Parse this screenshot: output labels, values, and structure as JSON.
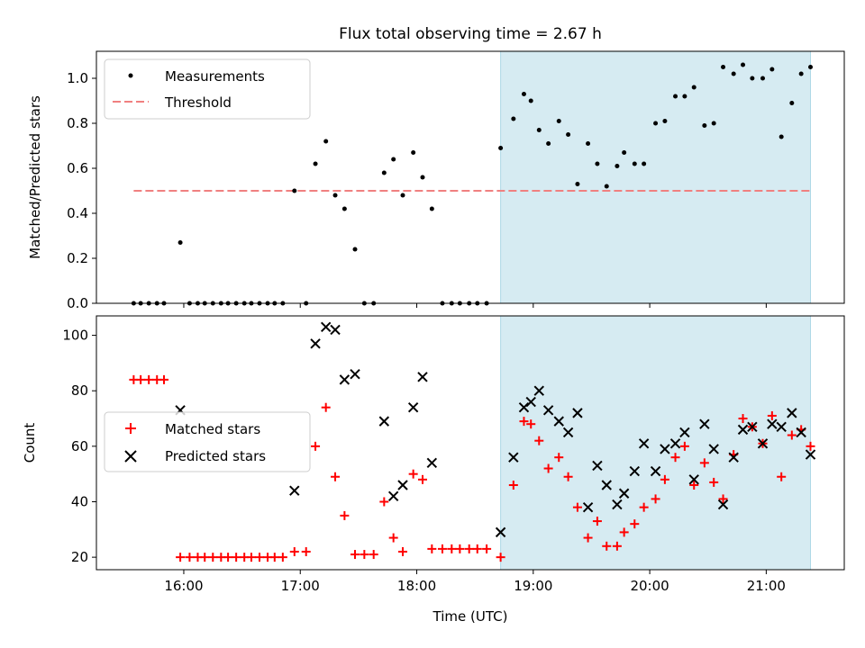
{
  "chart_data": {
    "title": "Flux total observing time = 2.67 h",
    "xlabel": "Time (UTC)",
    "x_ticks": [
      "16:00",
      "17:00",
      "18:00",
      "19:00",
      "20:00",
      "21:00"
    ],
    "x_range_hours": [
      15.25,
      21.67
    ],
    "shaded_region": {
      "start": 18.72,
      "end": 21.38,
      "color": "#add8e6"
    },
    "top": {
      "type": "scatter",
      "ylabel": "Matched/Predicted stars",
      "ylim": [
        0,
        1.12
      ],
      "y_ticks": [
        "0.0",
        "0.2",
        "0.4",
        "0.6",
        "0.8",
        "1.0"
      ],
      "legend": {
        "placement": "upper-left",
        "items": [
          "Measurements",
          "Threshold"
        ]
      },
      "threshold": {
        "value": 0.5,
        "x_start": 15.57,
        "x_end": 21.38,
        "color": "#f08080"
      },
      "points": [
        [
          15.57,
          0
        ],
        [
          15.63,
          0
        ],
        [
          15.7,
          0
        ],
        [
          15.77,
          0
        ],
        [
          15.83,
          0
        ],
        [
          15.97,
          0.27
        ],
        [
          16.05,
          0
        ],
        [
          16.12,
          0
        ],
        [
          16.18,
          0
        ],
        [
          16.25,
          0
        ],
        [
          16.32,
          0
        ],
        [
          16.38,
          0
        ],
        [
          16.45,
          0
        ],
        [
          16.52,
          0
        ],
        [
          16.58,
          0
        ],
        [
          16.65,
          0
        ],
        [
          16.72,
          0
        ],
        [
          16.78,
          0
        ],
        [
          16.85,
          0
        ],
        [
          16.95,
          0.5
        ],
        [
          17.05,
          0
        ],
        [
          17.13,
          0.62
        ],
        [
          17.22,
          0.72
        ],
        [
          17.3,
          0.48
        ],
        [
          17.38,
          0.42
        ],
        [
          17.47,
          0.24
        ],
        [
          17.55,
          0
        ],
        [
          17.63,
          0
        ],
        [
          17.72,
          0.58
        ],
        [
          17.8,
          0.64
        ],
        [
          17.88,
          0.48
        ],
        [
          17.97,
          0.67
        ],
        [
          18.05,
          0.56
        ],
        [
          18.13,
          0.42
        ],
        [
          18.22,
          0
        ],
        [
          18.3,
          0
        ],
        [
          18.37,
          0
        ],
        [
          18.45,
          0
        ],
        [
          18.52,
          0
        ],
        [
          18.6,
          0
        ],
        [
          18.72,
          0.69
        ],
        [
          18.83,
          0.82
        ],
        [
          18.92,
          0.93
        ],
        [
          18.98,
          0.9
        ],
        [
          19.05,
          0.77
        ],
        [
          19.13,
          0.71
        ],
        [
          19.22,
          0.81
        ],
        [
          19.3,
          0.75
        ],
        [
          19.38,
          0.53
        ],
        [
          19.47,
          0.71
        ],
        [
          19.55,
          0.62
        ],
        [
          19.63,
          0.52
        ],
        [
          19.72,
          0.61
        ],
        [
          19.78,
          0.67
        ],
        [
          19.87,
          0.62
        ],
        [
          19.95,
          0.62
        ],
        [
          20.05,
          0.8
        ],
        [
          20.13,
          0.81
        ],
        [
          20.22,
          0.92
        ],
        [
          20.3,
          0.92
        ],
        [
          20.38,
          0.96
        ],
        [
          20.47,
          0.79
        ],
        [
          20.55,
          0.8
        ],
        [
          20.63,
          1.05
        ],
        [
          20.72,
          1.02
        ],
        [
          20.8,
          1.06
        ],
        [
          20.88,
          1.0
        ],
        [
          20.97,
          1.0
        ],
        [
          21.05,
          1.04
        ],
        [
          21.13,
          0.74
        ],
        [
          21.22,
          0.89
        ],
        [
          21.3,
          1.02
        ],
        [
          21.38,
          1.05
        ]
      ]
    },
    "bottom": {
      "type": "scatter",
      "ylabel": "Count",
      "ylim": [
        15.5,
        107
      ],
      "y_ticks": [
        "20",
        "40",
        "60",
        "80",
        "100"
      ],
      "legend": {
        "placement": "center-left",
        "items": [
          "Matched stars",
          "Predicted stars"
        ]
      },
      "series": [
        {
          "name": "Matched stars",
          "marker": "+",
          "color": "#ff0000",
          "points": [
            [
              15.57,
              84
            ],
            [
              15.63,
              84
            ],
            [
              15.7,
              84
            ],
            [
              15.77,
              84
            ],
            [
              15.83,
              84
            ],
            [
              15.97,
              20
            ],
            [
              16.05,
              20
            ],
            [
              16.12,
              20
            ],
            [
              16.18,
              20
            ],
            [
              16.25,
              20
            ],
            [
              16.32,
              20
            ],
            [
              16.38,
              20
            ],
            [
              16.45,
              20
            ],
            [
              16.52,
              20
            ],
            [
              16.58,
              20
            ],
            [
              16.65,
              20
            ],
            [
              16.72,
              20
            ],
            [
              16.78,
              20
            ],
            [
              16.85,
              20
            ],
            [
              16.95,
              22
            ],
            [
              17.05,
              22
            ],
            [
              17.13,
              60
            ],
            [
              17.22,
              74
            ],
            [
              17.3,
              49
            ],
            [
              17.38,
              35
            ],
            [
              17.47,
              21
            ],
            [
              17.55,
              21
            ],
            [
              17.63,
              21
            ],
            [
              17.72,
              40
            ],
            [
              17.8,
              27
            ],
            [
              17.88,
              22
            ],
            [
              17.97,
              50
            ],
            [
              18.05,
              48
            ],
            [
              18.13,
              23
            ],
            [
              18.22,
              23
            ],
            [
              18.3,
              23
            ],
            [
              18.37,
              23
            ],
            [
              18.45,
              23
            ],
            [
              18.52,
              23
            ],
            [
              18.6,
              23
            ],
            [
              18.72,
              20
            ],
            [
              18.83,
              46
            ],
            [
              18.92,
              69
            ],
            [
              18.98,
              68
            ],
            [
              19.05,
              62
            ],
            [
              19.13,
              52
            ],
            [
              19.22,
              56
            ],
            [
              19.3,
              49
            ],
            [
              19.38,
              38
            ],
            [
              19.47,
              27
            ],
            [
              19.55,
              33
            ],
            [
              19.63,
              24
            ],
            [
              19.72,
              24
            ],
            [
              19.78,
              29
            ],
            [
              19.87,
              32
            ],
            [
              19.95,
              38
            ],
            [
              20.05,
              41
            ],
            [
              20.13,
              48
            ],
            [
              20.22,
              56
            ],
            [
              20.3,
              60
            ],
            [
              20.38,
              46
            ],
            [
              20.47,
              54
            ],
            [
              20.55,
              47
            ],
            [
              20.63,
              41
            ],
            [
              20.72,
              57
            ],
            [
              20.8,
              70
            ],
            [
              20.88,
              67
            ],
            [
              20.97,
              61
            ],
            [
              21.05,
              71
            ],
            [
              21.13,
              49
            ],
            [
              21.22,
              64
            ],
            [
              21.3,
              66
            ],
            [
              21.38,
              60
            ]
          ]
        },
        {
          "name": "Predicted stars",
          "marker": "x",
          "color": "#000000",
          "points": [
            [
              15.97,
              73
            ],
            [
              16.95,
              44
            ],
            [
              17.13,
              97
            ],
            [
              17.22,
              103
            ],
            [
              17.3,
              102
            ],
            [
              17.38,
              84
            ],
            [
              17.47,
              86
            ],
            [
              17.72,
              69
            ],
            [
              17.8,
              42
            ],
            [
              17.88,
              46
            ],
            [
              17.97,
              74
            ],
            [
              18.05,
              85
            ],
            [
              18.13,
              54
            ],
            [
              18.72,
              29
            ],
            [
              18.83,
              56
            ],
            [
              18.92,
              74
            ],
            [
              18.98,
              76
            ],
            [
              19.05,
              80
            ],
            [
              19.13,
              73
            ],
            [
              19.22,
              69
            ],
            [
              19.3,
              65
            ],
            [
              19.38,
              72
            ],
            [
              19.47,
              38
            ],
            [
              19.55,
              53
            ],
            [
              19.63,
              46
            ],
            [
              19.72,
              39
            ],
            [
              19.78,
              43
            ],
            [
              19.87,
              51
            ],
            [
              19.95,
              61
            ],
            [
              20.05,
              51
            ],
            [
              20.13,
              59
            ],
            [
              20.22,
              61
            ],
            [
              20.3,
              65
            ],
            [
              20.38,
              48
            ],
            [
              20.47,
              68
            ],
            [
              20.55,
              59
            ],
            [
              20.63,
              39
            ],
            [
              20.72,
              56
            ],
            [
              20.8,
              66
            ],
            [
              20.88,
              67
            ],
            [
              20.97,
              61
            ],
            [
              21.05,
              68
            ],
            [
              21.13,
              67
            ],
            [
              21.22,
              72
            ],
            [
              21.3,
              65
            ],
            [
              21.38,
              57
            ]
          ]
        }
      ]
    }
  }
}
